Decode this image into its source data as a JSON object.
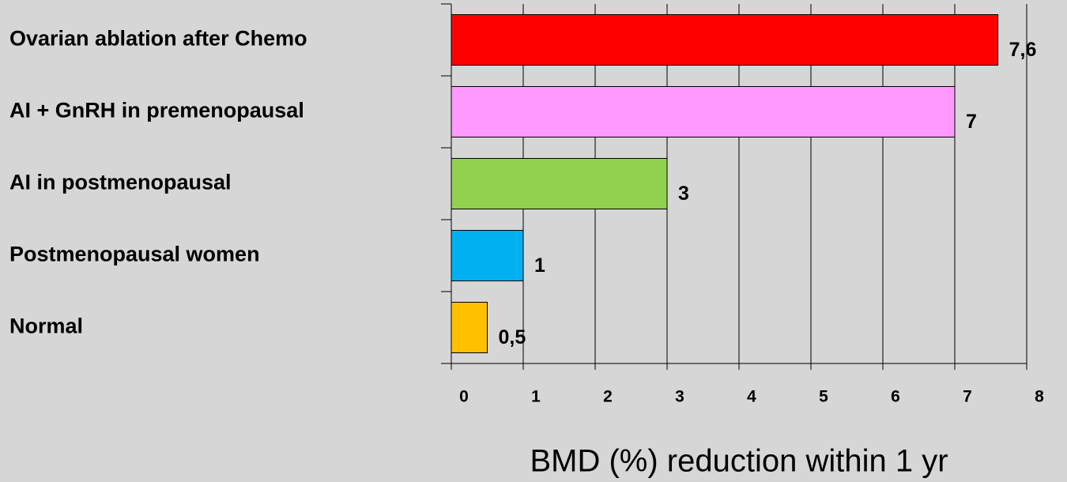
{
  "chart_data": {
    "type": "bar",
    "orientation": "horizontal",
    "x_label": "BMD (%) reduction within 1 yr",
    "categories": [
      "Ovarian ablation after Chemo",
      "AI + GnRH in premenopausal",
      "AI in postmenopausal",
      "Postmenopausal women",
      "Normal"
    ],
    "values": [
      7.6,
      7,
      3,
      1,
      0.5
    ],
    "value_labels": [
      "7,6",
      "7",
      "3",
      "1",
      "0,5"
    ],
    "colors": [
      "#ff0000",
      "#ff99ff",
      "#92d050",
      "#00b0f0",
      "#ffc000"
    ],
    "xlim": [
      0,
      8
    ],
    "xticks": [
      0,
      1,
      2,
      3,
      4,
      5,
      6,
      7,
      8
    ],
    "grid": true
  }
}
